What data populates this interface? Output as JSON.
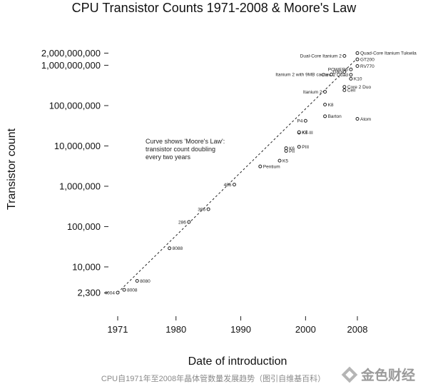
{
  "chart_data": {
    "type": "scatter",
    "title": "CPU Transistor Counts 1971-2008 & Moore's Law",
    "xlabel": "Date of introduction",
    "ylabel": "Transistor count",
    "y_scale": "log",
    "xlim": [
      1971,
      2008
    ],
    "ylim": [
      2300,
      2000000000
    ],
    "x_ticks": [
      1971,
      1980,
      1990,
      2000,
      2008
    ],
    "y_ticks": [
      {
        "value": 2300,
        "label": "2,300"
      },
      {
        "value": 10000,
        "label": "10,000"
      },
      {
        "value": 100000,
        "label": "100,000"
      },
      {
        "value": 1000000,
        "label": "1,000,000"
      },
      {
        "value": 10000000,
        "label": "10,000,000"
      },
      {
        "value": 100000000,
        "label": "100,000,000"
      },
      {
        "value": 1000000000,
        "label": "1,000,000,000"
      },
      {
        "value": 2000000000,
        "label": "2,000,000,000"
      }
    ],
    "annotation": [
      "Curve shows 'Moore's Law':",
      "transistor count doubling",
      "every two years"
    ],
    "trend": {
      "x": [
        1971,
        2008
      ],
      "y": [
        2300,
        1500000000
      ]
    },
    "points": [
      {
        "label": "4004",
        "x": 1971,
        "y": 2300
      },
      {
        "label": "8008",
        "x": 1972,
        "y": 2700
      },
      {
        "label": "8080",
        "x": 1974,
        "y": 4500
      },
      {
        "label": "8088",
        "x": 1979,
        "y": 29000
      },
      {
        "label": "286",
        "x": 1982,
        "y": 130000
      },
      {
        "label": "386",
        "x": 1985,
        "y": 270000
      },
      {
        "label": "486",
        "x": 1989,
        "y": 1100000
      },
      {
        "label": "Pentium",
        "x": 1993,
        "y": 3100000
      },
      {
        "label": "K5",
        "x": 1996,
        "y": 4300000
      },
      {
        "label": "PII",
        "x": 1997,
        "y": 7500000
      },
      {
        "label": "PIII",
        "x": 1999,
        "y": 9500000
      },
      {
        "label": "K6",
        "x": 1997,
        "y": 8800000
      },
      {
        "label": "K6-III",
        "x": 1999,
        "y": 21300000
      },
      {
        "label": "K7",
        "x": 1999,
        "y": 22000000
      },
      {
        "label": "P4",
        "x": 2000,
        "y": 42000000
      },
      {
        "label": "Barton",
        "x": 2003,
        "y": 54300000
      },
      {
        "label": "Atom",
        "x": 2008,
        "y": 47000000
      },
      {
        "label": "K8",
        "x": 2003,
        "y": 105900000
      },
      {
        "label": "Itanium 2",
        "x": 2003,
        "y": 220000000
      },
      {
        "label": "Core 2 Duo",
        "x": 2006,
        "y": 291000000
      },
      {
        "label": "Cell",
        "x": 2006,
        "y": 241000000
      },
      {
        "label": "K10",
        "x": 2007,
        "y": 463000000
      },
      {
        "label": "Core 2 Quad",
        "x": 2007,
        "y": 582000000
      },
      {
        "label": "Itanium 2 with 9MB cache",
        "x": 2004,
        "y": 592000000
      },
      {
        "label": "G80",
        "x": 2006,
        "y": 681000000
      },
      {
        "label": "POWER6",
        "x": 2007,
        "y": 789000000
      },
      {
        "label": "RV770",
        "x": 2008,
        "y": 956000000
      },
      {
        "label": "GT200",
        "x": 2008,
        "y": 1400000000
      },
      {
        "label": "Dual-Core Itanium 2",
        "x": 2006,
        "y": 1700000000
      },
      {
        "label": "Quad-Core Itanium Tukwila",
        "x": 2008,
        "y": 2000000000
      }
    ]
  },
  "caption": "CPU自1971年至2008年晶体管数量发展趋势（图引自维基百科）",
  "watermark": "金色财经",
  "watermark_icon": "diamond-logo-icon"
}
